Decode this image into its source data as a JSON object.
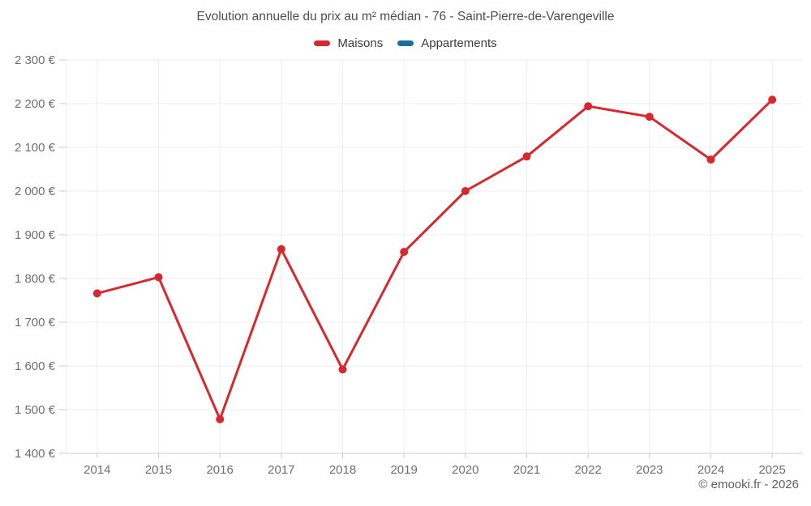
{
  "footer": {
    "text": "© emooki.fr - 2026"
  },
  "chart_data": {
    "type": "line",
    "title": "Evolution annuelle du prix au m² médian - 76 - Saint-Pierre-de-Varengeville",
    "categories": [
      "2014",
      "2015",
      "2016",
      "2017",
      "2018",
      "2019",
      "2020",
      "2021",
      "2022",
      "2023",
      "2024",
      "2025"
    ],
    "series": [
      {
        "name": "Maisons",
        "color": "#d7282e",
        "values": [
          1766,
          1803,
          1478,
          1867,
          1592,
          1861,
          2000,
          2079,
          2194,
          2170,
          2072,
          2209
        ]
      },
      {
        "name": "Appartements",
        "color": "#1a6f9d",
        "values": []
      }
    ],
    "xlabel": "",
    "ylabel": "",
    "ylim": [
      1400,
      2300
    ],
    "y_ticks": [
      {
        "value": 1400,
        "label": "1 400 €"
      },
      {
        "value": 1500,
        "label": "1 500 €"
      },
      {
        "value": 1600,
        "label": "1 600 €"
      },
      {
        "value": 1700,
        "label": "1 700 €"
      },
      {
        "value": 1800,
        "label": "1 800 €"
      },
      {
        "value": 1900,
        "label": "1 900 €"
      },
      {
        "value": 2000,
        "label": "2 000 €"
      },
      {
        "value": 2100,
        "label": "2 100 €"
      },
      {
        "value": 2200,
        "label": "2 200 €"
      },
      {
        "value": 2300,
        "label": "2 300 €"
      }
    ],
    "grid": true,
    "legend_position": "top",
    "colors": {
      "grid_line": "#ededed",
      "axis_line": "#cccccc",
      "tick_label": "#6e6e6e",
      "title_text": "#4e4e4e"
    }
  }
}
